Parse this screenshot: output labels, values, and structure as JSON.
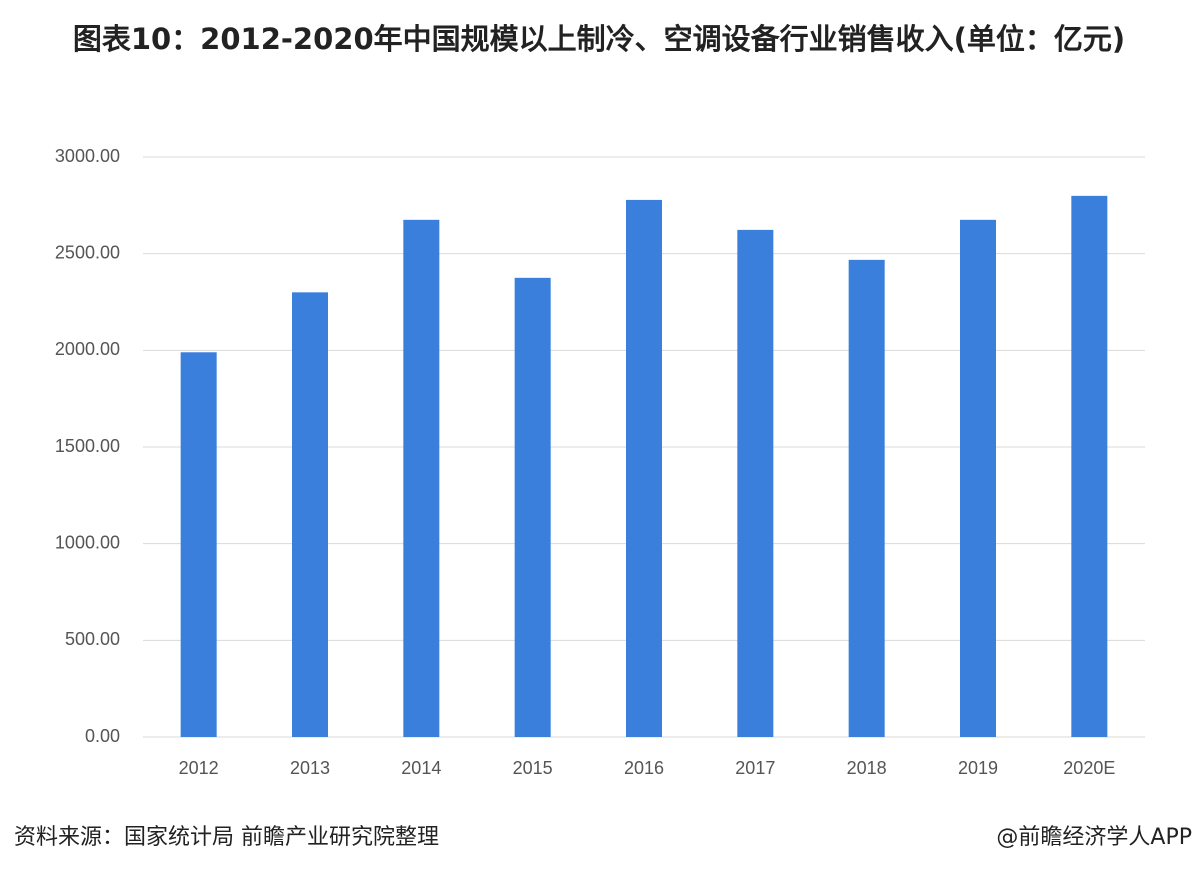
{
  "chart_data": {
    "type": "bar",
    "title": "图表10：2012-2020年中国规模以上制冷、空调设备行业销售收入(单位：亿元)",
    "categories": [
      "2012",
      "2013",
      "2014",
      "2015",
      "2016",
      "2017",
      "2018",
      "2019",
      "2020E"
    ],
    "values": [
      1990,
      2300,
      2675,
      2375,
      2778,
      2623,
      2468,
      2675,
      2799
    ],
    "color": "#3a7fdc",
    "ylim": [
      0,
      3000
    ],
    "yticks": [
      {
        "value": 0,
        "label": "0.00"
      },
      {
        "value": 500,
        "label": "500.00"
      },
      {
        "value": 1000,
        "label": "1000.00"
      },
      {
        "value": 1500,
        "label": "1500.00"
      },
      {
        "value": 2000,
        "label": "2000.00"
      },
      {
        "value": 2500,
        "label": "2500.00"
      },
      {
        "value": 3000,
        "label": "3000.00"
      }
    ],
    "grid": true,
    "source": "资料来源：国家统计局 前瞻产业研究院整理",
    "credit": "@前瞻经济学人APP"
  }
}
